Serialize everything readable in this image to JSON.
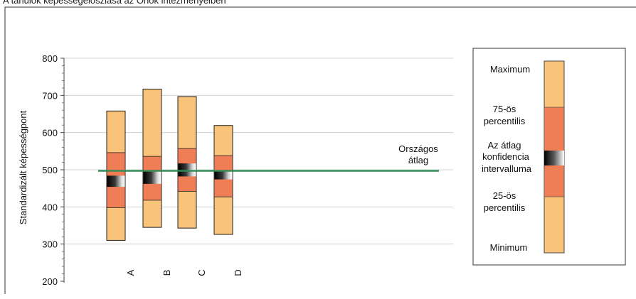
{
  "page": {
    "title": "A tanulók képességeloszlása az Önök intézményeiben"
  },
  "chart_data": {
    "type": "boxplot",
    "ylabel": "Standardizált képességpont",
    "ylim": [
      200,
      800
    ],
    "yticks": [
      200,
      300,
      400,
      500,
      600,
      700,
      800
    ],
    "grid": true,
    "categories": [
      "A",
      "B",
      "C",
      "D"
    ],
    "boxes": [
      {
        "label": "A",
        "min": 310,
        "p25": 398,
        "ci_low": 454,
        "ci_high": 484,
        "p75": 546,
        "max": 658
      },
      {
        "label": "B",
        "min": 345,
        "p25": 418,
        "ci_low": 462,
        "ci_high": 495,
        "p75": 536,
        "max": 717
      },
      {
        "label": "C",
        "min": 343,
        "p25": 442,
        "ci_low": 482,
        "ci_high": 517,
        "p75": 557,
        "max": 697
      },
      {
        "label": "D",
        "min": 326,
        "p25": 427,
        "ci_low": 474,
        "ci_high": 497,
        "p75": 538,
        "max": 619
      }
    ],
    "reference_line": {
      "value": 497,
      "label_line1": "Országos",
      "label_line2": "átlag",
      "color": "#2e8b57"
    },
    "colors": {
      "outer": "#f9c37a",
      "inner": "#ef7e56",
      "ci_dark": "#111111",
      "border": "#222222"
    },
    "legend": {
      "position": "right",
      "items": [
        "Maximum",
        "75-ös percentilis",
        "Az átlag konfidencia intervalluma",
        "25-ös percentilis",
        "Minimum"
      ],
      "text_lines": [
        {
          "key": "maximum",
          "text": "Maximum"
        },
        {
          "key": "p75-line1",
          "text": "75-ös"
        },
        {
          "key": "p75-line2",
          "text": "percentilis"
        },
        {
          "key": "ci-line1",
          "text": "Az átlag"
        },
        {
          "key": "ci-line2",
          "text": "konfidencia"
        },
        {
          "key": "ci-line3",
          "text": "intervalluma"
        },
        {
          "key": "p25-line1",
          "text": "25-ös"
        },
        {
          "key": "p25-line2",
          "text": "percentilis"
        },
        {
          "key": "minimum",
          "text": "Minimum"
        }
      ]
    }
  }
}
